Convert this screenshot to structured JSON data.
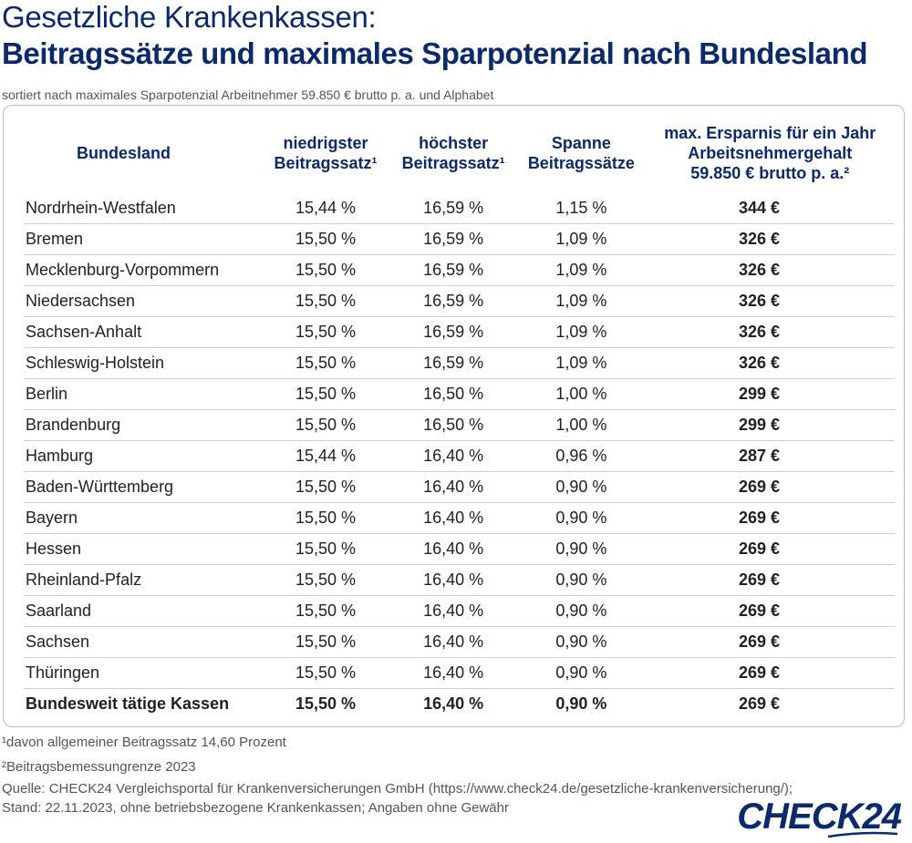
{
  "header": {
    "title": "Gesetzliche Krankenkassen:",
    "headline": "Beitragssätze und maximales Sparpotenzial nach Bundesland",
    "subtitle": "sortiert nach maximales Sparpotenzial Arbeitnehmer 59.850 € brutto p. a. und Alphabet"
  },
  "table": {
    "columns": [
      [
        "Bundesland"
      ],
      [
        "niedrigster",
        "Beitragssatz¹"
      ],
      [
        "höchster",
        "Beitragssatz¹"
      ],
      [
        "Spanne",
        "Beitragssätze"
      ],
      [
        "max. Ersparnis für ein Jahr",
        "Arbeitsnehmergehalt",
        "59.850 € brutto p. a.²"
      ]
    ],
    "rows": [
      [
        "Nordrhein-Westfalen",
        "15,44 %",
        "16,59 %",
        "1,15 %",
        "344 €"
      ],
      [
        "Bremen",
        "15,50 %",
        "16,59 %",
        "1,09 %",
        "326 €"
      ],
      [
        "Mecklenburg-Vorpommern",
        "15,50 %",
        "16,59 %",
        "1,09 %",
        "326 €"
      ],
      [
        "Niedersachsen",
        "15,50 %",
        "16,59 %",
        "1,09 %",
        "326 €"
      ],
      [
        "Sachsen-Anhalt",
        "15,50 %",
        "16,59 %",
        "1,09 %",
        "326 €"
      ],
      [
        "Schleswig-Holstein",
        "15,50 %",
        "16,59 %",
        "1,09 %",
        "326 €"
      ],
      [
        "Berlin",
        "15,50 %",
        "16,50 %",
        "1,00 %",
        "299 €"
      ],
      [
        "Brandenburg",
        "15,50 %",
        "16,50 %",
        "1,00 %",
        "299 €"
      ],
      [
        "Hamburg",
        "15,44 %",
        "16,40 %",
        "0,96 %",
        "287 €"
      ],
      [
        "Baden-Württemberg",
        "15,50 %",
        "16,40 %",
        "0,90 %",
        "269 €"
      ],
      [
        "Bayern",
        "15,50 %",
        "16,40 %",
        "0,90 %",
        "269 €"
      ],
      [
        "Hessen",
        "15,50 %",
        "16,40 %",
        "0,90 %",
        "269 €"
      ],
      [
        "Rheinland-Pfalz",
        "15,50 %",
        "16,40 %",
        "0,90 %",
        "269 €"
      ],
      [
        "Saarland",
        "15,50 %",
        "16,40 %",
        "0,90 %",
        "269 €"
      ],
      [
        "Sachsen",
        "15,50 %",
        "16,40 %",
        "0,90 %",
        "269 €"
      ],
      [
        "Thüringen",
        "15,50 %",
        "16,40 %",
        "0,90 %",
        "269 €"
      ]
    ],
    "total": [
      "Bundesweit tätige Kassen",
      "15,50 %",
      "16,40 %",
      "0,90 %",
      "269 €"
    ]
  },
  "footnotes": {
    "note1": "¹davon allgemeiner Beitragssatz 14,60 Prozent",
    "note2": "²Beitragsbemessungrenze 2023",
    "source": "Quelle: CHECK24 Vergleichsportal für Krankenversicherungen GmbH (https://www.check24.de/gesetzliche-krankenversicherung/);",
    "stand": "Stand: 22.11.2023, ohne betriebsbezogene Krankenkassen; Angaben ohne Gewähr"
  },
  "logo": {
    "text": "CHECK24",
    "color": "#0b2a6b"
  },
  "colors": {
    "heading": "#0b2a6b",
    "rule": "#cfcfcf",
    "border": "#bdbdbd"
  }
}
